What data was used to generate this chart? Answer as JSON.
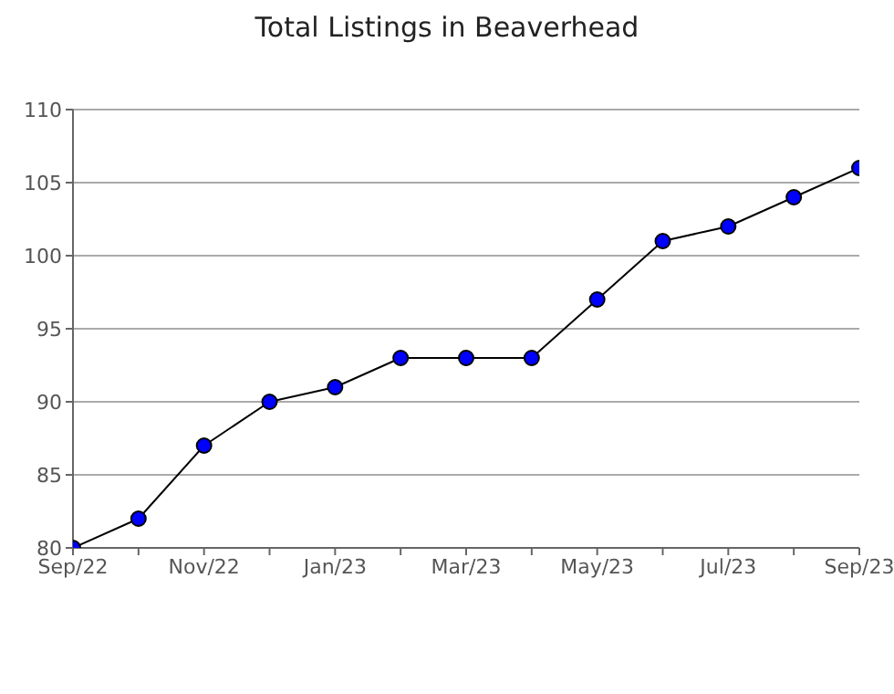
{
  "chart_data": {
    "type": "line",
    "title": "Total Listings in Beaverhead",
    "categories": [
      "Sep/22",
      null,
      "Nov/22",
      null,
      "Jan/23",
      null,
      "Mar/23",
      null,
      "May/23",
      null,
      "Jul/23",
      null,
      "Sep/23"
    ],
    "series": [
      {
        "color": "#0000ff",
        "values": [
          80,
          82,
          87,
          90,
          91,
          93,
          93,
          93,
          97,
          101,
          102,
          104,
          106
        ]
      }
    ],
    "ylim": [
      80,
      110
    ],
    "yticks": [
      80,
      85,
      90,
      95,
      100,
      105,
      110
    ],
    "grid": "y",
    "marker": "circle",
    "line_style": "solid"
  }
}
